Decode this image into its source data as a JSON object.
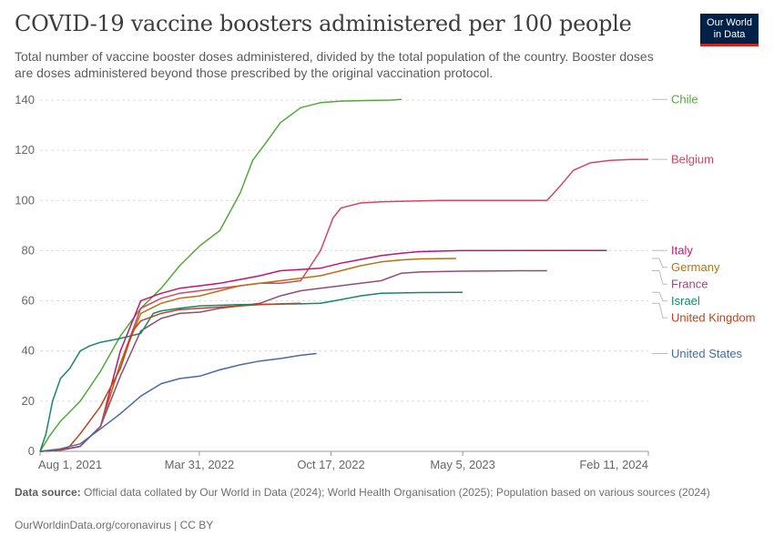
{
  "header": {
    "title": "COVID-19 vaccine boosters administered per 100 people",
    "subtitle": "Total number of vaccine booster doses administered, divided by the total population of the country. Booster doses are doses administered beyond those prescribed by the original vaccination protocol.",
    "logo_line1": "Our World",
    "logo_line2": "in Data"
  },
  "footer": {
    "source_label": "Data source:",
    "source_text": "Official data collated by Our World in Data (2024); World Health Organisation (2025); Population based on various sources (2024)",
    "credit": "OurWorldinData.org/coronavirus | CC BY"
  },
  "colors": {
    "Chile": "#54a73a",
    "Belgium": "#d64561",
    "Italy": "#c2146e",
    "Germany": "#b5720f",
    "France": "#934b71",
    "Israel": "#13886a",
    "United Kingdom": "#c0421b",
    "United States": "#486aa8"
  },
  "chart_data": {
    "type": "line",
    "x_axis": {
      "type": "date",
      "range": [
        "2021-08-01",
        "2024-02-11"
      ],
      "tick_labels": [
        "Aug 1, 2021",
        "Mar 31, 2022",
        "Oct 17, 2022",
        "May 5, 2023",
        "Feb 11, 2024"
      ],
      "tick_dates": [
        "2021-08-01",
        "2022-03-31",
        "2022-10-17",
        "2023-05-05",
        "2024-02-11"
      ]
    },
    "y_axis": {
      "range": [
        0,
        140
      ],
      "ticks": [
        0,
        20,
        40,
        60,
        80,
        100,
        120,
        140
      ],
      "grid": true
    },
    "legend_placement": "right, labels at line ends",
    "series": [
      {
        "name": "Chile",
        "points": [
          [
            "2021-08-01",
            0
          ],
          [
            "2021-08-15",
            6
          ],
          [
            "2021-09-01",
            12
          ],
          [
            "2021-10-01",
            20
          ],
          [
            "2021-11-01",
            32
          ],
          [
            "2021-12-01",
            46
          ],
          [
            "2022-01-01",
            57
          ],
          [
            "2022-02-01",
            65
          ],
          [
            "2022-03-01",
            74
          ],
          [
            "2022-04-01",
            82
          ],
          [
            "2022-05-01",
            88
          ],
          [
            "2022-06-01",
            103
          ],
          [
            "2022-06-20",
            116
          ],
          [
            "2022-07-10",
            123
          ],
          [
            "2022-08-01",
            131
          ],
          [
            "2022-09-01",
            137
          ],
          [
            "2022-10-01",
            139
          ],
          [
            "2022-11-01",
            139.6
          ],
          [
            "2022-12-01",
            139.8
          ],
          [
            "2023-01-15",
            140
          ],
          [
            "2023-02-01",
            140.3
          ]
        ]
      },
      {
        "name": "Belgium",
        "points": [
          [
            "2021-08-01",
            0
          ],
          [
            "2021-09-01",
            0.5
          ],
          [
            "2021-10-01",
            2
          ],
          [
            "2021-11-01",
            10
          ],
          [
            "2021-12-01",
            35
          ],
          [
            "2022-01-01",
            57
          ],
          [
            "2022-02-01",
            61
          ],
          [
            "2022-03-01",
            63
          ],
          [
            "2022-04-01",
            64
          ],
          [
            "2022-05-01",
            65
          ],
          [
            "2022-06-01",
            66
          ],
          [
            "2022-07-01",
            67
          ],
          [
            "2022-08-01",
            67
          ],
          [
            "2022-09-01",
            68
          ],
          [
            "2022-10-01",
            80
          ],
          [
            "2022-10-20",
            93
          ],
          [
            "2022-11-01",
            97
          ],
          [
            "2022-12-01",
            99
          ],
          [
            "2023-01-01",
            99.5
          ],
          [
            "2023-04-01",
            100
          ],
          [
            "2023-08-01",
            100
          ],
          [
            "2023-09-10",
            100
          ],
          [
            "2023-10-01",
            106
          ],
          [
            "2023-10-20",
            112
          ],
          [
            "2023-11-15",
            115
          ],
          [
            "2023-12-15",
            116
          ],
          [
            "2024-01-15",
            116.3
          ],
          [
            "2024-02-11",
            116.4
          ]
        ]
      },
      {
        "name": "Italy",
        "points": [
          [
            "2021-08-01",
            0
          ],
          [
            "2021-09-01",
            0.5
          ],
          [
            "2021-10-01",
            2
          ],
          [
            "2021-11-01",
            10
          ],
          [
            "2021-12-01",
            40
          ],
          [
            "2022-01-01",
            60
          ],
          [
            "2022-02-01",
            63
          ],
          [
            "2022-03-01",
            65
          ],
          [
            "2022-04-01",
            66
          ],
          [
            "2022-05-01",
            67
          ],
          [
            "2022-06-01",
            68.5
          ],
          [
            "2022-07-01",
            70
          ],
          [
            "2022-08-01",
            72
          ],
          [
            "2022-09-01",
            72.5
          ],
          [
            "2022-10-01",
            73
          ],
          [
            "2022-11-01",
            75
          ],
          [
            "2022-12-01",
            76.5
          ],
          [
            "2023-01-01",
            78
          ],
          [
            "2023-02-01",
            79
          ],
          [
            "2023-03-01",
            79.6
          ],
          [
            "2023-05-01",
            80
          ],
          [
            "2023-11-01",
            80.1
          ],
          [
            "2023-12-10",
            80.1
          ]
        ]
      },
      {
        "name": "Germany",
        "points": [
          [
            "2021-08-01",
            0
          ],
          [
            "2021-09-01",
            0.5
          ],
          [
            "2021-10-01",
            2
          ],
          [
            "2021-11-01",
            10
          ],
          [
            "2021-12-01",
            35
          ],
          [
            "2022-01-01",
            55
          ],
          [
            "2022-02-01",
            59
          ],
          [
            "2022-03-01",
            61
          ],
          [
            "2022-04-01",
            62
          ],
          [
            "2022-05-01",
            64
          ],
          [
            "2022-06-01",
            66
          ],
          [
            "2022-07-01",
            67
          ],
          [
            "2022-08-01",
            68
          ],
          [
            "2022-09-01",
            69
          ],
          [
            "2022-10-01",
            70
          ],
          [
            "2022-11-01",
            72
          ],
          [
            "2022-12-01",
            74
          ],
          [
            "2023-01-01",
            75.5
          ],
          [
            "2023-02-01",
            76.3
          ],
          [
            "2023-03-01",
            76.7
          ],
          [
            "2023-04-25",
            76.9
          ]
        ]
      },
      {
        "name": "France",
        "points": [
          [
            "2021-08-01",
            0
          ],
          [
            "2021-09-01",
            0.5
          ],
          [
            "2021-10-01",
            2
          ],
          [
            "2021-11-01",
            10
          ],
          [
            "2021-12-01",
            30
          ],
          [
            "2022-01-01",
            48
          ],
          [
            "2022-02-01",
            53
          ],
          [
            "2022-03-01",
            55
          ],
          [
            "2022-04-01",
            55.5
          ],
          [
            "2022-05-01",
            57
          ],
          [
            "2022-06-01",
            58
          ],
          [
            "2022-07-01",
            59
          ],
          [
            "2022-08-01",
            62
          ],
          [
            "2022-09-01",
            64
          ],
          [
            "2022-10-01",
            65
          ],
          [
            "2022-11-01",
            66
          ],
          [
            "2022-12-01",
            67
          ],
          [
            "2023-01-01",
            68
          ],
          [
            "2023-02-01",
            71
          ],
          [
            "2023-03-01",
            71.5
          ],
          [
            "2023-05-01",
            71.8
          ],
          [
            "2023-08-01",
            72
          ],
          [
            "2023-09-10",
            72
          ]
        ]
      },
      {
        "name": "Israel",
        "points": [
          [
            "2021-08-01",
            0
          ],
          [
            "2021-08-10",
            7
          ],
          [
            "2021-08-20",
            20
          ],
          [
            "2021-09-01",
            29
          ],
          [
            "2021-09-15",
            33
          ],
          [
            "2021-10-01",
            40
          ],
          [
            "2021-10-15",
            42
          ],
          [
            "2021-11-01",
            43.5
          ],
          [
            "2021-12-01",
            45
          ],
          [
            "2022-01-01",
            47
          ],
          [
            "2022-01-20",
            55
          ],
          [
            "2022-02-01",
            56
          ],
          [
            "2022-03-01",
            57
          ],
          [
            "2022-04-01",
            58
          ],
          [
            "2022-06-01",
            58.5
          ],
          [
            "2022-09-01",
            58.8
          ],
          [
            "2022-10-01",
            59
          ],
          [
            "2022-11-01",
            60.5
          ],
          [
            "2022-12-01",
            62
          ],
          [
            "2023-01-01",
            63
          ],
          [
            "2023-03-01",
            63.3
          ],
          [
            "2023-05-05",
            63.4
          ]
        ]
      },
      {
        "name": "United Kingdom",
        "points": [
          [
            "2021-08-01",
            0
          ],
          [
            "2021-09-01",
            0.5
          ],
          [
            "2021-09-15",
            2
          ],
          [
            "2021-10-01",
            7
          ],
          [
            "2021-11-01",
            18
          ],
          [
            "2021-12-01",
            33
          ],
          [
            "2021-12-20",
            48
          ],
          [
            "2022-01-01",
            52
          ],
          [
            "2022-02-01",
            55
          ],
          [
            "2022-03-01",
            56.5
          ],
          [
            "2022-04-01",
            57
          ],
          [
            "2022-05-01",
            57.5
          ],
          [
            "2022-06-01",
            58
          ],
          [
            "2022-07-01",
            58.5
          ],
          [
            "2022-08-01",
            58.8
          ],
          [
            "2022-09-01",
            59
          ]
        ]
      },
      {
        "name": "United States",
        "points": [
          [
            "2021-08-01",
            0
          ],
          [
            "2021-09-01",
            1
          ],
          [
            "2021-10-01",
            3
          ],
          [
            "2021-11-01",
            9
          ],
          [
            "2021-12-01",
            15
          ],
          [
            "2022-01-01",
            22
          ],
          [
            "2022-02-01",
            27
          ],
          [
            "2022-03-01",
            29
          ],
          [
            "2022-04-01",
            30
          ],
          [
            "2022-05-01",
            32.5
          ],
          [
            "2022-06-01",
            34.5
          ],
          [
            "2022-07-01",
            36
          ],
          [
            "2022-08-01",
            37
          ],
          [
            "2022-09-01",
            38.3
          ],
          [
            "2022-09-25",
            39
          ]
        ]
      }
    ],
    "labels": [
      {
        "name": "Chile",
        "y": 140.3
      },
      {
        "name": "Belgium",
        "y": 116.4
      },
      {
        "name": "Italy",
        "y": 80.1
      },
      {
        "name": "Germany",
        "y": 76.9
      },
      {
        "name": "France",
        "y": 72
      },
      {
        "name": "Israel",
        "y": 63.4
      },
      {
        "name": "United Kingdom",
        "y": 59
      },
      {
        "name": "United States",
        "y": 39
      }
    ]
  }
}
